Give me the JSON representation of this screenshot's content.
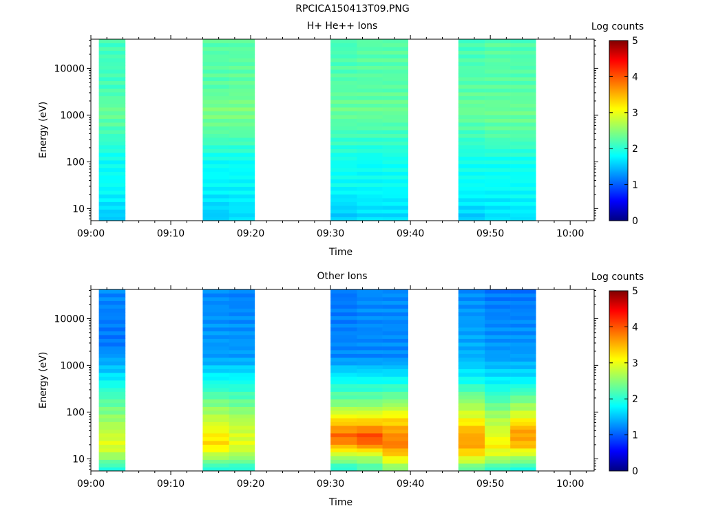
{
  "figure": {
    "title": "RPCICA150413T09.PNG"
  },
  "colorbar": {
    "label": "Log counts",
    "ticks": [
      "0",
      "1",
      "2",
      "3",
      "4",
      "5"
    ],
    "range": [
      0,
      5
    ],
    "colormap": "jet"
  },
  "chart_data": [
    {
      "type": "heatmap",
      "title": "H+ He++ Ions",
      "xlabel": "Time",
      "ylabel": "Energy (eV)",
      "y_scale": "log",
      "ylim": [
        5.5,
        42000
      ],
      "xlim": [
        "09:00",
        "10:03"
      ],
      "x_ticks": [
        "09:00",
        "09:10",
        "09:20",
        "09:30",
        "09:40",
        "09:50",
        "10:00"
      ],
      "y_ticks": [
        "10",
        "100",
        "1000",
        "10000"
      ],
      "time_bins": [
        [
          "09:01",
          "09:04.3"
        ],
        [
          "09:14",
          "09:17.3"
        ],
        [
          "09:17.3",
          "09:20.5"
        ],
        [
          "09:30",
          "09:33.3"
        ],
        [
          "09:33.3",
          "09:36.5"
        ],
        [
          "09:36.5",
          "09:39.7"
        ],
        [
          "09:46",
          "09:49.3"
        ],
        [
          "09:49.3",
          "09:52.5"
        ],
        [
          "09:52.5",
          "09:55.7"
        ]
      ],
      "profiles": [
        [
          [
            6,
            1.6
          ],
          [
            16,
            1.8
          ],
          [
            30,
            1.9
          ],
          [
            100,
            1.9
          ],
          [
            400,
            2.2
          ],
          [
            1200,
            2.4
          ],
          [
            4000,
            2.2
          ],
          [
            42000,
            2.2
          ]
        ],
        [
          [
            6,
            1.6
          ],
          [
            16,
            1.75
          ],
          [
            30,
            1.85
          ],
          [
            100,
            1.9
          ],
          [
            400,
            2.3
          ],
          [
            1200,
            2.5
          ],
          [
            4000,
            2.3
          ],
          [
            42000,
            2.3
          ]
        ],
        [
          [
            6,
            1.7
          ],
          [
            16,
            1.8
          ],
          [
            30,
            1.85
          ],
          [
            100,
            1.9
          ],
          [
            400,
            2.3
          ],
          [
            1200,
            2.5
          ],
          [
            4000,
            2.35
          ],
          [
            42000,
            2.3
          ]
        ],
        [
          [
            6,
            1.6
          ],
          [
            16,
            1.75
          ],
          [
            30,
            1.9
          ],
          [
            100,
            1.95
          ],
          [
            400,
            2.2
          ],
          [
            1200,
            2.4
          ],
          [
            4000,
            2.3
          ],
          [
            42000,
            2.2
          ]
        ],
        [
          [
            6,
            1.7
          ],
          [
            16,
            1.8
          ],
          [
            30,
            1.9
          ],
          [
            100,
            1.9
          ],
          [
            400,
            2.2
          ],
          [
            1200,
            2.4
          ],
          [
            4000,
            2.3
          ],
          [
            42000,
            2.3
          ]
        ],
        [
          [
            6,
            1.7
          ],
          [
            16,
            1.8
          ],
          [
            30,
            1.9
          ],
          [
            100,
            1.95
          ],
          [
            400,
            2.2
          ],
          [
            1200,
            2.4
          ],
          [
            4000,
            2.3
          ],
          [
            42000,
            2.3
          ]
        ],
        [
          [
            6,
            1.6
          ],
          [
            16,
            1.8
          ],
          [
            30,
            1.9
          ],
          [
            100,
            1.95
          ],
          [
            400,
            2.2
          ],
          [
            1200,
            2.4
          ],
          [
            4000,
            2.3
          ],
          [
            42000,
            2.2
          ]
        ],
        [
          [
            6,
            1.75
          ],
          [
            16,
            1.8
          ],
          [
            30,
            1.9
          ],
          [
            100,
            1.95
          ],
          [
            400,
            2.3
          ],
          [
            1200,
            2.4
          ],
          [
            4000,
            2.3
          ],
          [
            42000,
            2.3
          ]
        ],
        [
          [
            6,
            1.75
          ],
          [
            16,
            1.85
          ],
          [
            30,
            1.9
          ],
          [
            100,
            1.95
          ],
          [
            400,
            2.3
          ],
          [
            1200,
            2.4
          ],
          [
            4000,
            2.3
          ],
          [
            42000,
            2.25
          ]
        ]
      ]
    },
    {
      "type": "heatmap",
      "title": "Other Ions",
      "xlabel": "Time",
      "ylabel": "Energy (eV)",
      "y_scale": "log",
      "ylim": [
        5.5,
        42000
      ],
      "xlim": [
        "09:00",
        "10:03"
      ],
      "x_ticks": [
        "09:00",
        "09:10",
        "09:20",
        "09:30",
        "09:40",
        "09:50",
        "10:00"
      ],
      "y_ticks": [
        "10",
        "100",
        "1000",
        "10000"
      ],
      "time_bins": [
        [
          "09:01",
          "09:04.3"
        ],
        [
          "09:14",
          "09:17.3"
        ],
        [
          "09:17.3",
          "09:20.5"
        ],
        [
          "09:30",
          "09:33.3"
        ],
        [
          "09:33.3",
          "09:36.5"
        ],
        [
          "09:36.5",
          "09:39.7"
        ],
        [
          "09:46",
          "09:49.3"
        ],
        [
          "09:49.3",
          "09:52.5"
        ],
        [
          "09:52.5",
          "09:55.7"
        ]
      ],
      "profiles": [
        [
          [
            6,
            2.0
          ],
          [
            12,
            2.7
          ],
          [
            20,
            3.0
          ],
          [
            40,
            2.8
          ],
          [
            100,
            2.5
          ],
          [
            300,
            2.1
          ],
          [
            800,
            1.6
          ],
          [
            3000,
            1.2
          ],
          [
            42000,
            1.3
          ]
        ],
        [
          [
            6,
            2.0
          ],
          [
            12,
            2.8
          ],
          [
            20,
            3.3
          ],
          [
            30,
            3.2
          ],
          [
            60,
            2.9
          ],
          [
            150,
            2.5
          ],
          [
            400,
            2.0
          ],
          [
            1500,
            1.4
          ],
          [
            42000,
            1.3
          ]
        ],
        [
          [
            6,
            2.0
          ],
          [
            12,
            2.7
          ],
          [
            20,
            3.0
          ],
          [
            60,
            2.8
          ],
          [
            150,
            2.4
          ],
          [
            400,
            2.0
          ],
          [
            1500,
            1.4
          ],
          [
            42000,
            1.25
          ]
        ],
        [
          [
            6,
            2.0
          ],
          [
            12,
            2.8
          ],
          [
            20,
            3.6
          ],
          [
            30,
            3.9
          ],
          [
            60,
            3.4
          ],
          [
            150,
            2.5
          ],
          [
            500,
            1.9
          ],
          [
            1500,
            1.3
          ],
          [
            42000,
            1.2
          ]
        ],
        [
          [
            6,
            2.2
          ],
          [
            12,
            2.8
          ],
          [
            20,
            3.8
          ],
          [
            30,
            4.05
          ],
          [
            60,
            3.4
          ],
          [
            150,
            2.5
          ],
          [
            500,
            1.9
          ],
          [
            1500,
            1.3
          ],
          [
            42000,
            1.3
          ]
        ],
        [
          [
            6,
            2.5
          ],
          [
            12,
            3.3
          ],
          [
            20,
            3.8
          ],
          [
            40,
            3.6
          ],
          [
            80,
            3.2
          ],
          [
            150,
            2.6
          ],
          [
            500,
            1.9
          ],
          [
            1500,
            1.3
          ],
          [
            42000,
            1.3
          ]
        ],
        [
          [
            6,
            2.3
          ],
          [
            12,
            3.2
          ],
          [
            20,
            3.6
          ],
          [
            40,
            3.5
          ],
          [
            80,
            3.0
          ],
          [
            200,
            2.5
          ],
          [
            500,
            1.9
          ],
          [
            1500,
            1.5
          ],
          [
            42000,
            1.3
          ]
        ],
        [
          [
            6,
            2.1
          ],
          [
            12,
            2.9
          ],
          [
            20,
            3.2
          ],
          [
            30,
            3.0
          ],
          [
            80,
            2.7
          ],
          [
            200,
            2.2
          ],
          [
            500,
            1.8
          ],
          [
            1500,
            1.4
          ],
          [
            42000,
            1.2
          ]
        ],
        [
          [
            6,
            2.0
          ],
          [
            12,
            2.8
          ],
          [
            20,
            3.5
          ],
          [
            40,
            3.6
          ],
          [
            80,
            3.0
          ],
          [
            200,
            2.4
          ],
          [
            500,
            1.8
          ],
          [
            1500,
            1.4
          ],
          [
            42000,
            1.2
          ]
        ]
      ]
    }
  ]
}
